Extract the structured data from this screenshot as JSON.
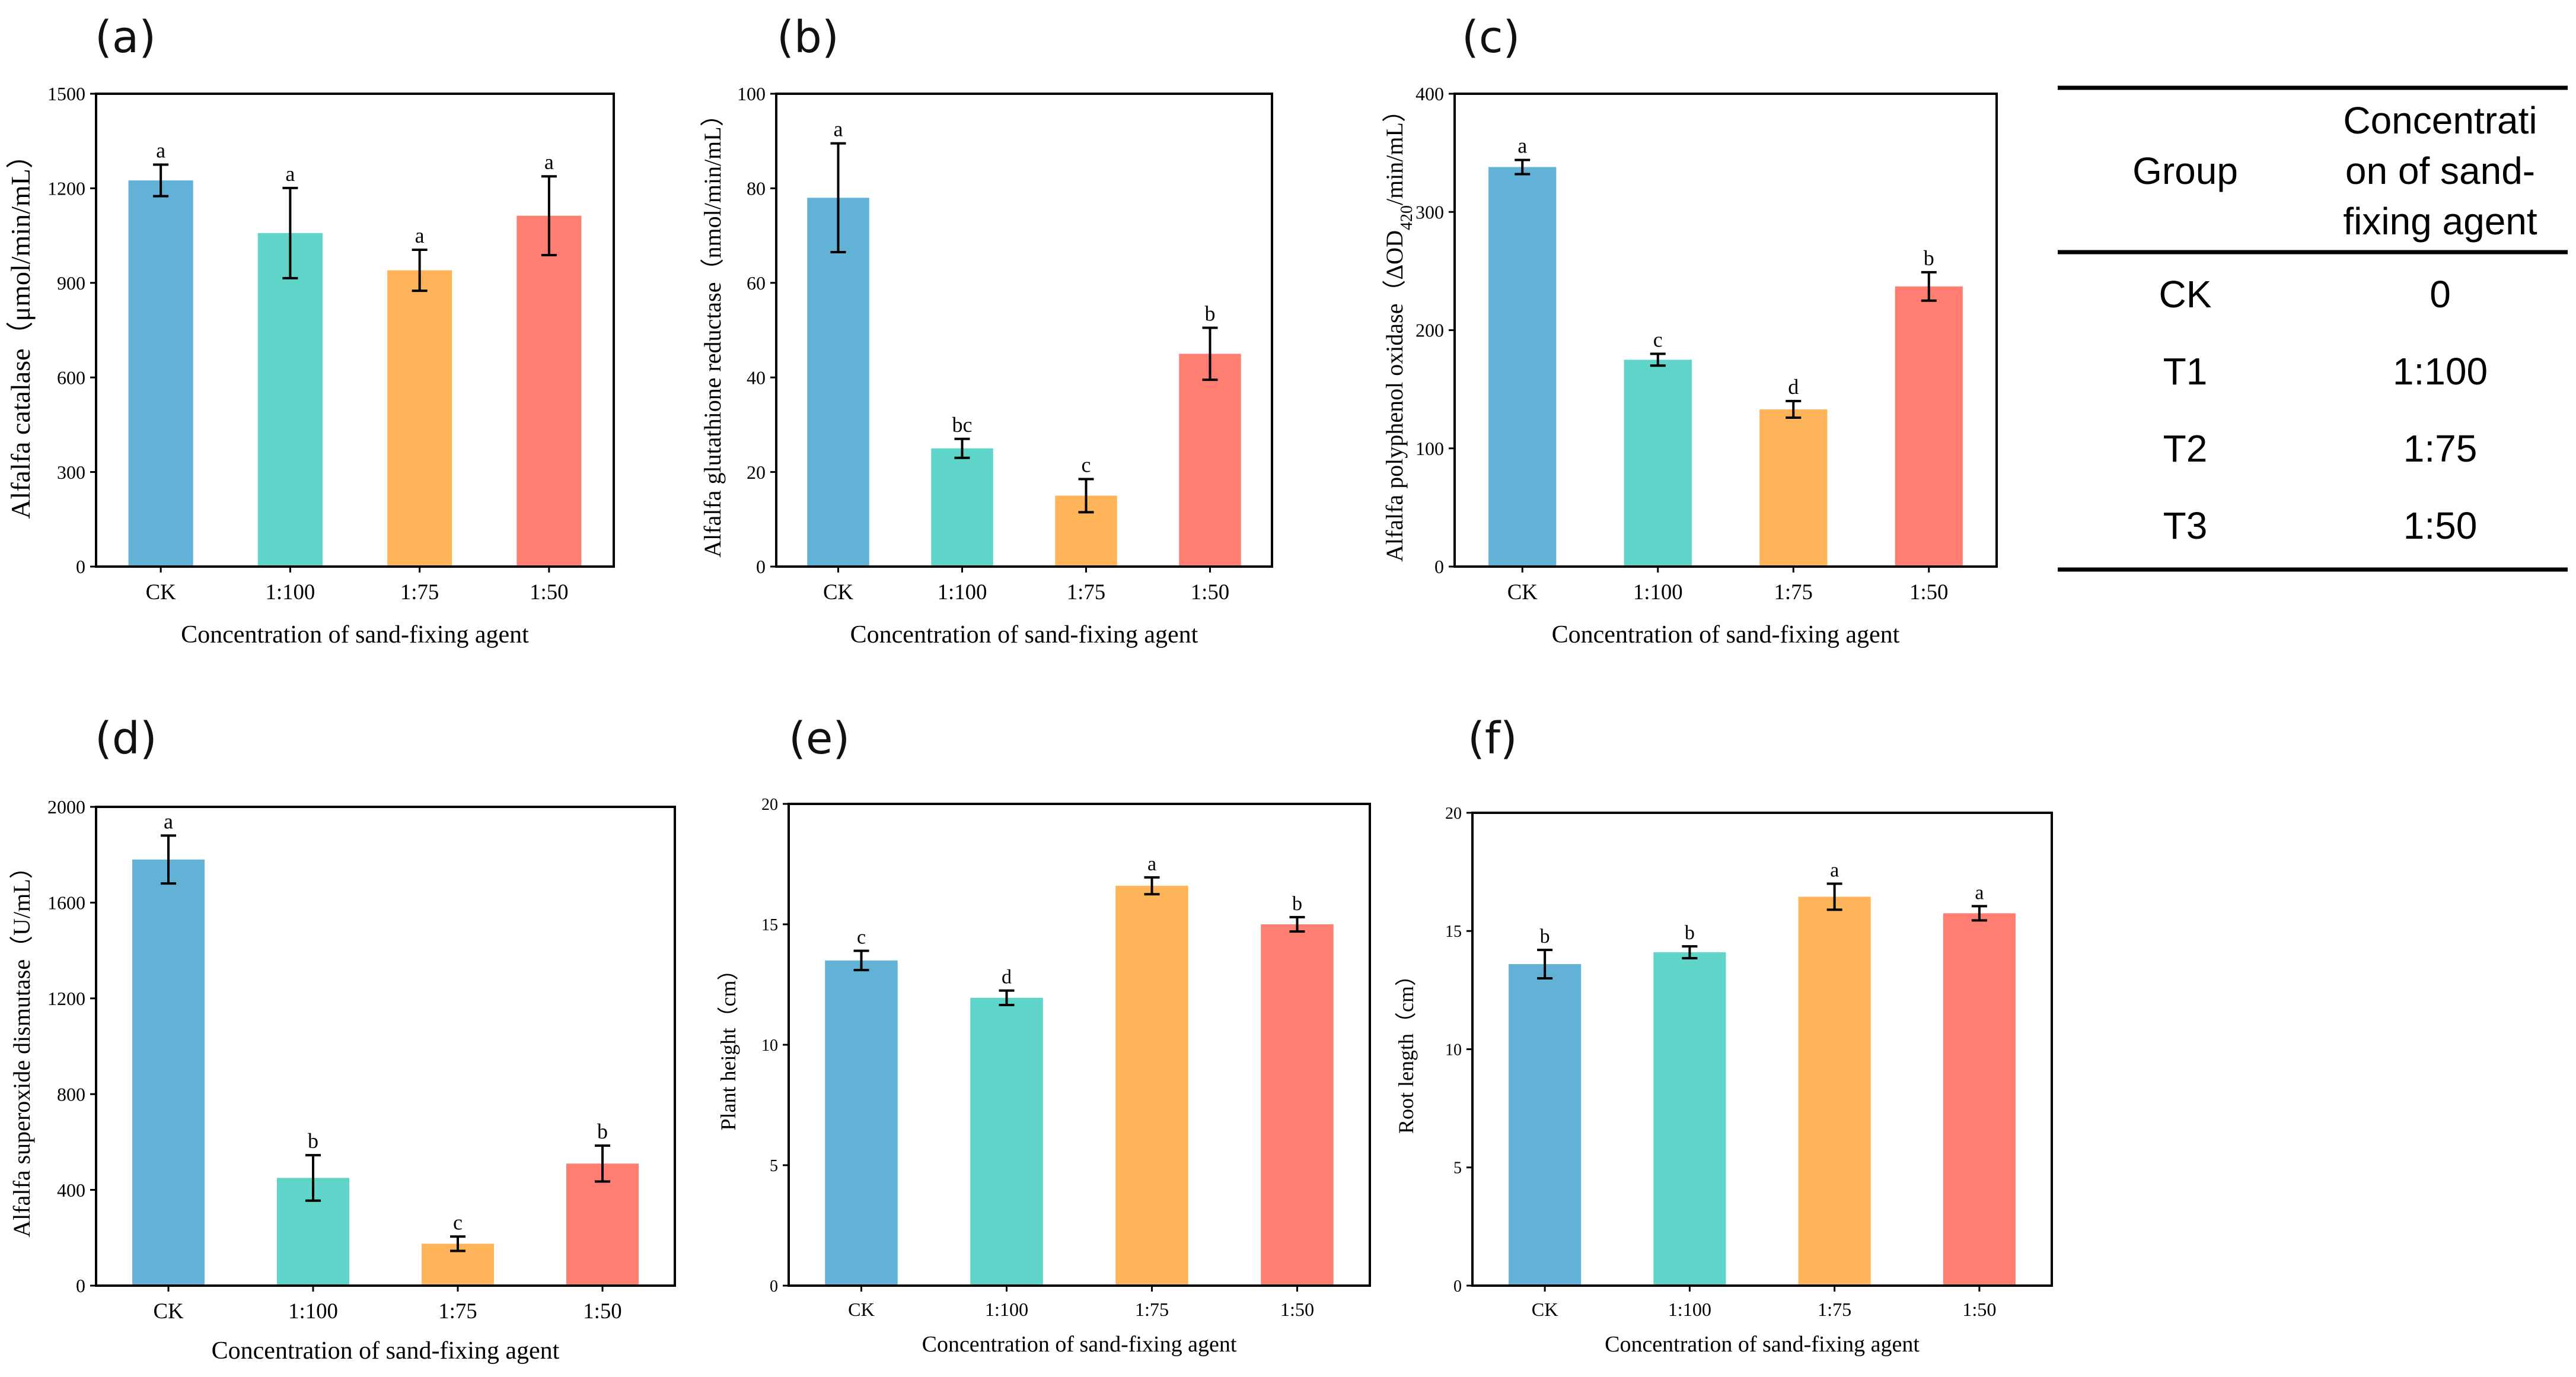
{
  "colors": [
    "#62b2d7",
    "#5fd4c9",
    "#ffb45a",
    "#ff7e72"
  ],
  "group_table": {
    "headers": [
      "Group",
      "Concentrati",
      "on of sand-",
      "fixing agent"
    ],
    "rows": [
      {
        "group": "CK",
        "concentration": "0"
      },
      {
        "group": "T1",
        "concentration": "1:100"
      },
      {
        "group": "T2",
        "concentration": "1:75"
      },
      {
        "group": "T3",
        "concentration": "1:50"
      }
    ]
  },
  "chart_data": [
    {
      "panel": "(a)",
      "type": "bar",
      "categories": [
        "CK",
        "1:100",
        "1:75",
        "1:50"
      ],
      "values": [
        1225,
        1058,
        940,
        1113
      ],
      "errors": [
        50,
        143,
        65,
        125
      ],
      "significance": [
        "a",
        "a",
        "a",
        "a"
      ],
      "ylim": [
        0,
        1500
      ],
      "yticks": [
        0,
        300,
        600,
        900,
        1200,
        1500
      ],
      "xlabel": "Concentration of sand-fixing agent",
      "ylabel": "Alfalfa catalase（μmol/min/mL）"
    },
    {
      "panel": "(b)",
      "type": "bar",
      "categories": [
        "CK",
        "1:100",
        "1:75",
        "1:50"
      ],
      "values": [
        78,
        25,
        15,
        45
      ],
      "errors": [
        11.5,
        2,
        3.5,
        5.5
      ],
      "significance": [
        "a",
        "bc",
        "c",
        "b"
      ],
      "ylim": [
        0,
        100
      ],
      "yticks": [
        0,
        20,
        40,
        60,
        80,
        100
      ],
      "xlabel": "Concentration of sand-fixing agent",
      "ylabel": "Alfalfa glutathione reductase（nmol/min/mL）"
    },
    {
      "panel": "(c)",
      "type": "bar",
      "categories": [
        "CK",
        "1:100",
        "1:75",
        "1:50"
      ],
      "values": [
        338,
        175,
        133,
        237
      ],
      "errors": [
        6,
        5,
        7,
        12
      ],
      "significance": [
        "a",
        "c",
        "d",
        "b"
      ],
      "ylim": [
        0,
        400
      ],
      "yticks": [
        0,
        100,
        200,
        300,
        400
      ],
      "xlabel": "Concentration of sand-fixing agent",
      "ylabel_main": "Alfalfa polyphenol oxidase（ΔOD",
      "ylabel_sub": "420",
      "ylabel_tail": "/min/mL）"
    },
    {
      "panel": "(d)",
      "type": "bar",
      "categories": [
        "CK",
        "1:100",
        "1:75",
        "1:50"
      ],
      "values": [
        1780,
        450,
        175,
        510
      ],
      "errors": [
        100,
        95,
        30,
        75
      ],
      "significance": [
        "a",
        "b",
        "c",
        "b"
      ],
      "ylim": [
        0,
        2000
      ],
      "yticks": [
        0,
        400,
        800,
        1200,
        1600,
        2000
      ],
      "xlabel": "Concentration of sand-fixing agent",
      "ylabel": "Alfalfa superoxide dismutase（U/mL）"
    },
    {
      "panel": "(e)",
      "type": "bar",
      "categories": [
        "CK",
        "1:100",
        "1:75",
        "1:50"
      ],
      "values": [
        13.5,
        11.95,
        16.6,
        15.0
      ],
      "errors": [
        0.4,
        0.3,
        0.35,
        0.3
      ],
      "significance": [
        "c",
        "d",
        "a",
        "b"
      ],
      "ylim": [
        0,
        20
      ],
      "yticks": [
        0,
        5,
        10,
        15,
        20
      ],
      "xlabel": "Concentration of sand-fixing agent",
      "ylabel": "Plant height（cm）"
    },
    {
      "panel": "(f)",
      "type": "bar",
      "categories": [
        "CK",
        "1:100",
        "1:75",
        "1:50"
      ],
      "values": [
        13.6,
        14.1,
        16.45,
        15.75
      ],
      "errors": [
        0.6,
        0.25,
        0.55,
        0.3
      ],
      "significance": [
        "b",
        "b",
        "a",
        "a"
      ],
      "ylim": [
        0,
        20
      ],
      "yticks": [
        0,
        5,
        10,
        15,
        20
      ],
      "xlabel": "Concentration of sand-fixing agent",
      "ylabel": "Root length（cm）"
    }
  ]
}
